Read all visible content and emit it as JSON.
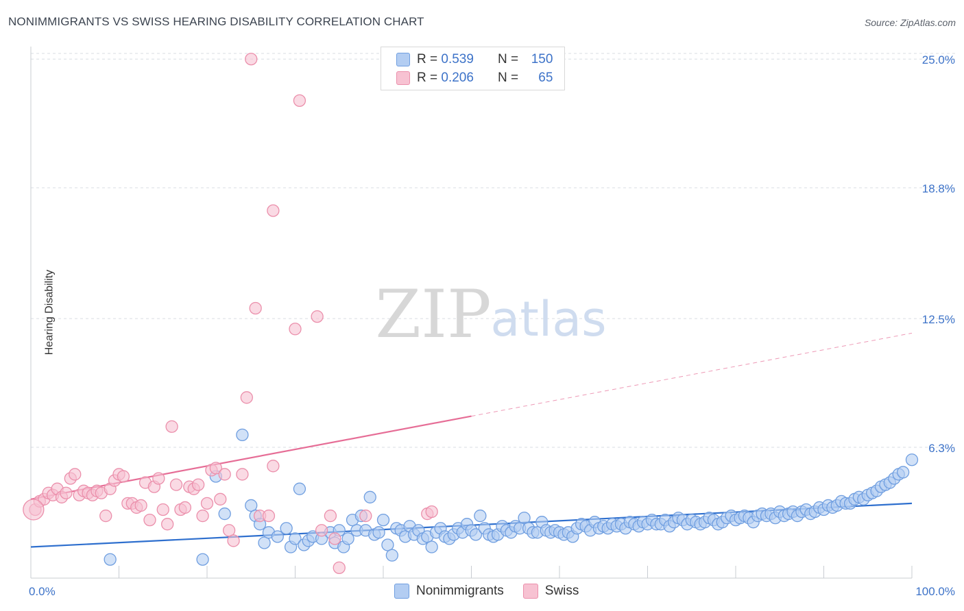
{
  "title": "NONIMMIGRANTS VS SWISS HEARING DISABILITY CORRELATION CHART",
  "source": "Source: ZipAtlas.com",
  "watermark": {
    "zip": "ZIP",
    "atlas": "atlas"
  },
  "legend_top": {
    "rows": [
      {
        "r_label": "R =",
        "r_value": "0.539",
        "n_label": "N =",
        "n_value": "150"
      },
      {
        "r_label": "R =",
        "r_value": "0.206",
        "n_label": "N =",
        "n_value": "65"
      }
    ]
  },
  "legend_bottom": {
    "items": [
      "Nonimmigrants",
      "Swiss"
    ]
  },
  "colors": {
    "blue_fill": "#b3cdf2",
    "blue_stroke": "#6f9ee0",
    "blue_line": "#2e6fce",
    "pink_fill": "#f7c2d2",
    "pink_stroke": "#eb8fab",
    "pink_line": "#e66d96",
    "axis_text": "#3c72c8",
    "grid": "#d9dde3"
  },
  "chart_data": {
    "type": "scatter",
    "title": "NONIMMIGRANTS VS SWISS HEARING DISABILITY CORRELATION CHART",
    "xlabel": "",
    "ylabel": "Hearing Disability",
    "xlim": [
      0,
      100
    ],
    "ylim": [
      0,
      25.8
    ],
    "x_tick_labels": [
      "0.0%",
      "100.0%"
    ],
    "y_ticks": [
      6.3,
      12.5,
      18.8,
      25.0
    ],
    "y_tick_labels": [
      "6.3%",
      "12.5%",
      "18.8%",
      "25.0%"
    ],
    "series": [
      {
        "name": "Nonimmigrants",
        "r": 0.539,
        "n": 150,
        "trend": {
          "x0": 0,
          "y0": 1.5,
          "x1": 100,
          "y1": 3.6
        },
        "points": [
          [
            9,
            0.9
          ],
          [
            19.5,
            0.9
          ],
          [
            21,
            4.9
          ],
          [
            22,
            3.1
          ],
          [
            24,
            6.9
          ],
          [
            25,
            3.5
          ],
          [
            25.5,
            3.0
          ],
          [
            26,
            2.6
          ],
          [
            26.5,
            1.7
          ],
          [
            27,
            2.2
          ],
          [
            28,
            2.0
          ],
          [
            29,
            2.4
          ],
          [
            29.5,
            1.5
          ],
          [
            30,
            1.9
          ],
          [
            30.5,
            4.3
          ],
          [
            31,
            1.6
          ],
          [
            31.5,
            1.8
          ],
          [
            32,
            2.0
          ],
          [
            33,
            1.9
          ],
          [
            34,
            2.2
          ],
          [
            34.5,
            1.7
          ],
          [
            35,
            2.3
          ],
          [
            35.5,
            1.5
          ],
          [
            36,
            1.9
          ],
          [
            36.5,
            2.8
          ],
          [
            37,
            2.3
          ],
          [
            37.5,
            3.0
          ],
          [
            38,
            2.3
          ],
          [
            38.5,
            3.9
          ],
          [
            39,
            2.1
          ],
          [
            39.5,
            2.2
          ],
          [
            40,
            2.8
          ],
          [
            40.5,
            1.6
          ],
          [
            41,
            1.1
          ],
          [
            41.5,
            2.4
          ],
          [
            42,
            2.3
          ],
          [
            42.5,
            2.0
          ],
          [
            43,
            2.5
          ],
          [
            43.5,
            2.1
          ],
          [
            44,
            2.3
          ],
          [
            44.5,
            1.9
          ],
          [
            45,
            2.0
          ],
          [
            45.5,
            1.5
          ],
          [
            46,
            2.2
          ],
          [
            46.5,
            2.4
          ],
          [
            47,
            2.0
          ],
          [
            47.5,
            1.9
          ],
          [
            48,
            2.1
          ],
          [
            48.5,
            2.4
          ],
          [
            49,
            2.2
          ],
          [
            49.5,
            2.6
          ],
          [
            50,
            2.3
          ],
          [
            50.5,
            2.1
          ],
          [
            51,
            3.0
          ],
          [
            51.5,
            2.4
          ],
          [
            52,
            2.1
          ],
          [
            52.5,
            2.0
          ],
          [
            53,
            2.1
          ],
          [
            53.5,
            2.5
          ],
          [
            54,
            2.3
          ],
          [
            54.5,
            2.2
          ],
          [
            55,
            2.5
          ],
          [
            55.5,
            2.4
          ],
          [
            56,
            2.9
          ],
          [
            56.5,
            2.4
          ],
          [
            57,
            2.2
          ],
          [
            57.5,
            2.2
          ],
          [
            58,
            2.7
          ],
          [
            58.5,
            2.3
          ],
          [
            59,
            2.2
          ],
          [
            59.5,
            2.3
          ],
          [
            60,
            2.2
          ],
          [
            60.5,
            2.1
          ],
          [
            61,
            2.2
          ],
          [
            61.5,
            2.0
          ],
          [
            62,
            2.4
          ],
          [
            62.5,
            2.6
          ],
          [
            63,
            2.5
          ],
          [
            63.5,
            2.3
          ],
          [
            64,
            2.7
          ],
          [
            64.5,
            2.4
          ],
          [
            65,
            2.5
          ],
          [
            65.5,
            2.4
          ],
          [
            66,
            2.6
          ],
          [
            66.5,
            2.5
          ],
          [
            67,
            2.6
          ],
          [
            67.5,
            2.4
          ],
          [
            68,
            2.7
          ],
          [
            68.5,
            2.6
          ],
          [
            69,
            2.5
          ],
          [
            69.5,
            2.7
          ],
          [
            70,
            2.6
          ],
          [
            70.5,
            2.8
          ],
          [
            71,
            2.6
          ],
          [
            71.5,
            2.6
          ],
          [
            72,
            2.8
          ],
          [
            72.5,
            2.5
          ],
          [
            73,
            2.7
          ],
          [
            73.5,
            2.9
          ],
          [
            74,
            2.8
          ],
          [
            74.5,
            2.6
          ],
          [
            75,
            2.8
          ],
          [
            75.5,
            2.7
          ],
          [
            76,
            2.6
          ],
          [
            76.5,
            2.7
          ],
          [
            77,
            2.9
          ],
          [
            77.5,
            2.8
          ],
          [
            78,
            2.6
          ],
          [
            78.5,
            2.7
          ],
          [
            79,
            2.9
          ],
          [
            79.5,
            3.0
          ],
          [
            80,
            2.8
          ],
          [
            80.5,
            2.9
          ],
          [
            81,
            3.0
          ],
          [
            81.5,
            2.9
          ],
          [
            82,
            2.7
          ],
          [
            82.5,
            3.0
          ],
          [
            83,
            3.1
          ],
          [
            83.5,
            3.0
          ],
          [
            84,
            3.1
          ],
          [
            84.5,
            2.9
          ],
          [
            85,
            3.2
          ],
          [
            85.5,
            3.0
          ],
          [
            86,
            3.1
          ],
          [
            86.5,
            3.2
          ],
          [
            87,
            3.0
          ],
          [
            87.5,
            3.2
          ],
          [
            88,
            3.3
          ],
          [
            88.5,
            3.1
          ],
          [
            89,
            3.2
          ],
          [
            89.5,
            3.4
          ],
          [
            90,
            3.3
          ],
          [
            90.5,
            3.5
          ],
          [
            91,
            3.4
          ],
          [
            91.5,
            3.5
          ],
          [
            92,
            3.7
          ],
          [
            92.5,
            3.6
          ],
          [
            93,
            3.6
          ],
          [
            93.5,
            3.8
          ],
          [
            94,
            3.9
          ],
          [
            94.5,
            3.8
          ],
          [
            95,
            4.0
          ],
          [
            95.5,
            4.1
          ],
          [
            96,
            4.2
          ],
          [
            96.5,
            4.4
          ],
          [
            97,
            4.5
          ],
          [
            97.5,
            4.6
          ],
          [
            98,
            4.8
          ],
          [
            98.5,
            5.0
          ],
          [
            99,
            5.1
          ],
          [
            100,
            5.7
          ]
        ]
      },
      {
        "name": "Swiss",
        "r": 0.206,
        "n": 65,
        "trend": {
          "x0": 0,
          "y0": 3.8,
          "x1": 50,
          "y1": 7.8,
          "dash_to": {
            "x": 100,
            "y": 11.8
          }
        },
        "points": [
          [
            0.5,
            3.3
          ],
          [
            1,
            3.7
          ],
          [
            1.5,
            3.8
          ],
          [
            2,
            4.1
          ],
          [
            2.5,
            4.0
          ],
          [
            3,
            4.3
          ],
          [
            3.5,
            3.9
          ],
          [
            4,
            4.1
          ],
          [
            4.5,
            4.8
          ],
          [
            5,
            5.0
          ],
          [
            5.5,
            4.0
          ],
          [
            6,
            4.2
          ],
          [
            6.5,
            4.1
          ],
          [
            7,
            4.0
          ],
          [
            7.5,
            4.2
          ],
          [
            8,
            4.1
          ],
          [
            8.5,
            3.0
          ],
          [
            9,
            4.3
          ],
          [
            9.5,
            4.7
          ],
          [
            10,
            5.0
          ],
          [
            10.5,
            4.9
          ],
          [
            11,
            3.6
          ],
          [
            11.5,
            3.6
          ],
          [
            12,
            3.4
          ],
          [
            12.5,
            3.5
          ],
          [
            13,
            4.6
          ],
          [
            13.5,
            2.8
          ],
          [
            14,
            4.4
          ],
          [
            14.5,
            4.8
          ],
          [
            15,
            3.3
          ],
          [
            15.5,
            2.6
          ],
          [
            16,
            7.3
          ],
          [
            16.5,
            4.5
          ],
          [
            17,
            3.3
          ],
          [
            17.5,
            3.4
          ],
          [
            18,
            4.4
          ],
          [
            18.5,
            4.3
          ],
          [
            19,
            4.5
          ],
          [
            19.5,
            3.0
          ],
          [
            20,
            3.6
          ],
          [
            20.5,
            5.2
          ],
          [
            21,
            5.3
          ],
          [
            21.5,
            3.8
          ],
          [
            22,
            5.0
          ],
          [
            22.5,
            2.3
          ],
          [
            23,
            1.8
          ],
          [
            24,
            5.0
          ],
          [
            24.5,
            8.7
          ],
          [
            25,
            25.0
          ],
          [
            25.5,
            13.0
          ],
          [
            26,
            3.0
          ],
          [
            27,
            3.0
          ],
          [
            27.5,
            5.4
          ],
          [
            27.5,
            17.7
          ],
          [
            30,
            12.0
          ],
          [
            30.5,
            23.0
          ],
          [
            32.5,
            12.6
          ],
          [
            33,
            2.3
          ],
          [
            34,
            3.0
          ],
          [
            34.5,
            1.9
          ],
          [
            35,
            0.5
          ],
          [
            38,
            3.0
          ],
          [
            45,
            3.1
          ],
          [
            45.5,
            3.2
          ]
        ]
      }
    ]
  }
}
